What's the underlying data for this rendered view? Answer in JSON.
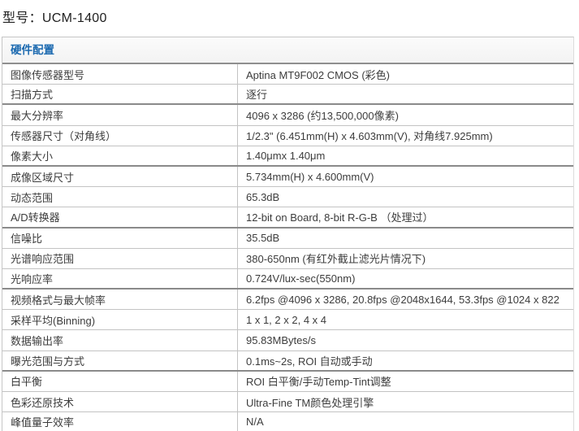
{
  "title": "型号：UCM-1400",
  "colors": {
    "section_header_text": "#1c6ab0",
    "section_header_bg": "#f5f5f5",
    "border_light": "#c3c3c3",
    "border_dark": "#8a8a8a",
    "cell_text": "#3c3c3c"
  },
  "table": {
    "section_header": "硬件配置",
    "rows": [
      {
        "label": "图像传感器型号",
        "value": "Aptina MT9F002 CMOS (彩色)",
        "group_end": false
      },
      {
        "label": "扫描方式",
        "value": "逐行",
        "group_end": true
      },
      {
        "label": "最大分辨率",
        "value": "4096 x 3286 (约13,500,000像素)",
        "group_end": false
      },
      {
        "label": "传感器尺寸（对角线）",
        "value": "1/2.3\" (6.451mm(H) x 4.603mm(V), 对角线7.925mm)",
        "group_end": false
      },
      {
        "label": "像素大小",
        "value": "1.40μmx 1.40μm",
        "group_end": true
      },
      {
        "label": "成像区域尺寸",
        "value": "5.734mm(H) x 4.600mm(V)",
        "group_end": false
      },
      {
        "label": "动态范围",
        "value": "65.3dB",
        "group_end": false
      },
      {
        "label": "A/D转换器",
        "value": "12-bit on Board, 8-bit R-G-B （处理过）",
        "group_end": true
      },
      {
        "label": "信噪比",
        "value": "35.5dB",
        "group_end": false
      },
      {
        "label": "光谱响应范围",
        "value": "380-650nm (有红外截止滤光片情况下)",
        "group_end": false
      },
      {
        "label": "光响应率",
        "value": "0.724V/lux-sec(550nm)",
        "group_end": true
      },
      {
        "label": "视频格式与最大帧率",
        "value": "6.2fps @4096 x 3286, 20.8fps @2048x1644, 53.3fps @1024 x 822",
        "group_end": false
      },
      {
        "label": "采样平均(Binning)",
        "value": "1 x 1, 2 x 2, 4 x 4",
        "group_end": false
      },
      {
        "label": "数据输出率",
        "value": "95.83MBytes/s",
        "group_end": false
      },
      {
        "label": "曝光范围与方式",
        "value": "0.1ms~2s, ROI 自动或手动",
        "group_end": true
      },
      {
        "label": "白平衡",
        "value": "ROI 白平衡/手动Temp-Tint调整",
        "group_end": false
      },
      {
        "label": "色彩还原技术",
        "value": "Ultra-Fine TM颜色处理引擎",
        "group_end": false
      },
      {
        "label": "峰值量子效率",
        "value": "N/A",
        "group_end": true
      }
    ]
  }
}
